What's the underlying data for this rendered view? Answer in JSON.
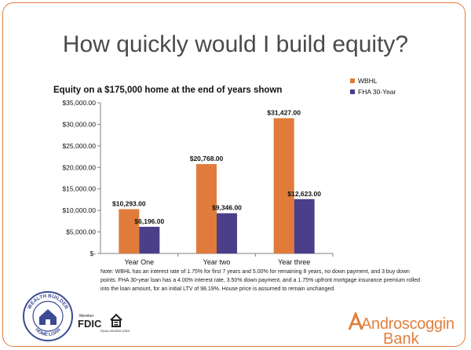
{
  "slide": {
    "headline": "How quickly would I build equity?"
  },
  "chart_data": {
    "type": "bar",
    "title": "Equity on a  $175,000 home at the end of years shown",
    "categories": [
      "Year One",
      "Year two",
      "Year three"
    ],
    "series": [
      {
        "name": "WBHL",
        "color": "#e07b3c",
        "values": [
          10293,
          20768,
          31427
        ],
        "labels": [
          "$10,293.00",
          "$20,768.00",
          "$31,427.00"
        ]
      },
      {
        "name": "FHA 30-Year",
        "color": "#4b3f8a",
        "values": [
          6196,
          9346,
          12623
        ],
        "labels": [
          "$6,196.00",
          "$9,346.00",
          "$12,623.00"
        ]
      }
    ],
    "ylim": [
      0,
      35000
    ],
    "yticks": [
      0,
      5000,
      10000,
      15000,
      20000,
      25000,
      30000,
      35000
    ],
    "ytick_labels": [
      "$-",
      "$5,000.00",
      "$10,000.00",
      "$15,000.00",
      "$20,000.00",
      "$25,000.00",
      "$30,000.00",
      "$35,000.00"
    ],
    "legend_position": "top-right",
    "grid": false
  },
  "note": "Note:  WBHL has an interest rate of 1.75% for first 7 years and 5.00% for remaining 8 years, no down payment, and 3 buy down points.  FHA 30-year loan has a 4.00% interest rate, 3.50% down payment, and a 1.75% upfront mortgage insurance premium rolled into the loan amount, for an initial LTV of 98.19%. House price is assumed to remain unchanged.",
  "logos": {
    "wbhl_top": "WEALTH BUILDER",
    "wbhl_bottom": "HOME LOAN",
    "fdic_member": "Member",
    "fdic": "FDIC",
    "equal_housing": "EQUAL HOUSING LENDER",
    "bank_name_1": "Androscoggin",
    "bank_name_2": "Bank",
    "accent": "#e07f3e"
  }
}
